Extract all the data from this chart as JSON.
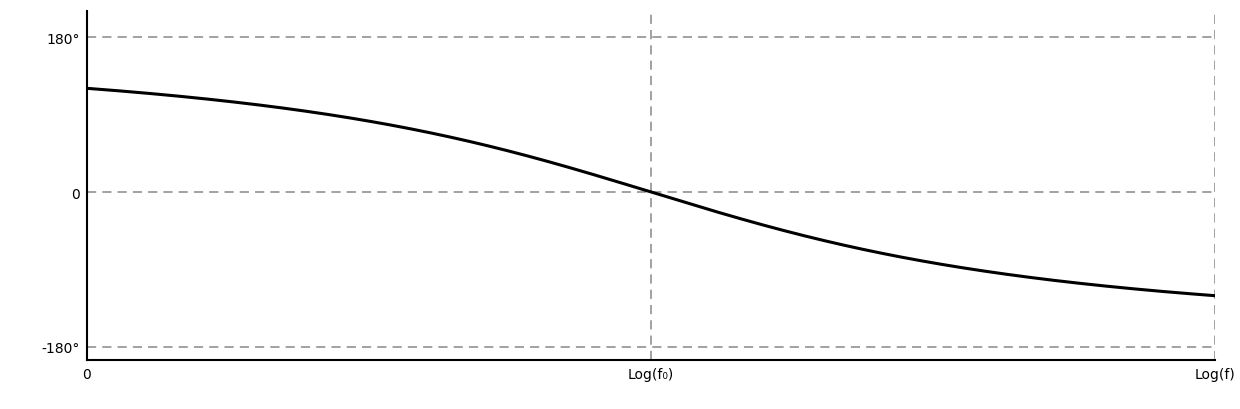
{
  "title": "",
  "xlabel": "Log(f)",
  "ylabel": "",
  "xlim": [
    0,
    10
  ],
  "ylim": [
    -195,
    210
  ],
  "f0_x": 5.0,
  "yticks": [
    180,
    0,
    -180
  ],
  "ytick_labels": [
    "180°",
    "0",
    "-180°"
  ],
  "xtick_positions": [
    0.0,
    5.0,
    10.0
  ],
  "xtick_labels": [
    "0",
    "Log(f₀)",
    "Log(f)"
  ],
  "curve_color": "#000000",
  "curve_linewidth": 2.2,
  "grid_color": "#888888",
  "grid_linewidth": 1.1,
  "grid_linestyle": "--",
  "background_color": "#ffffff",
  "dashed_vline_x": 5.0,
  "dashed_hlines": [
    180,
    0,
    -180
  ],
  "zeta": 0.03,
  "x_scale": 0.35
}
